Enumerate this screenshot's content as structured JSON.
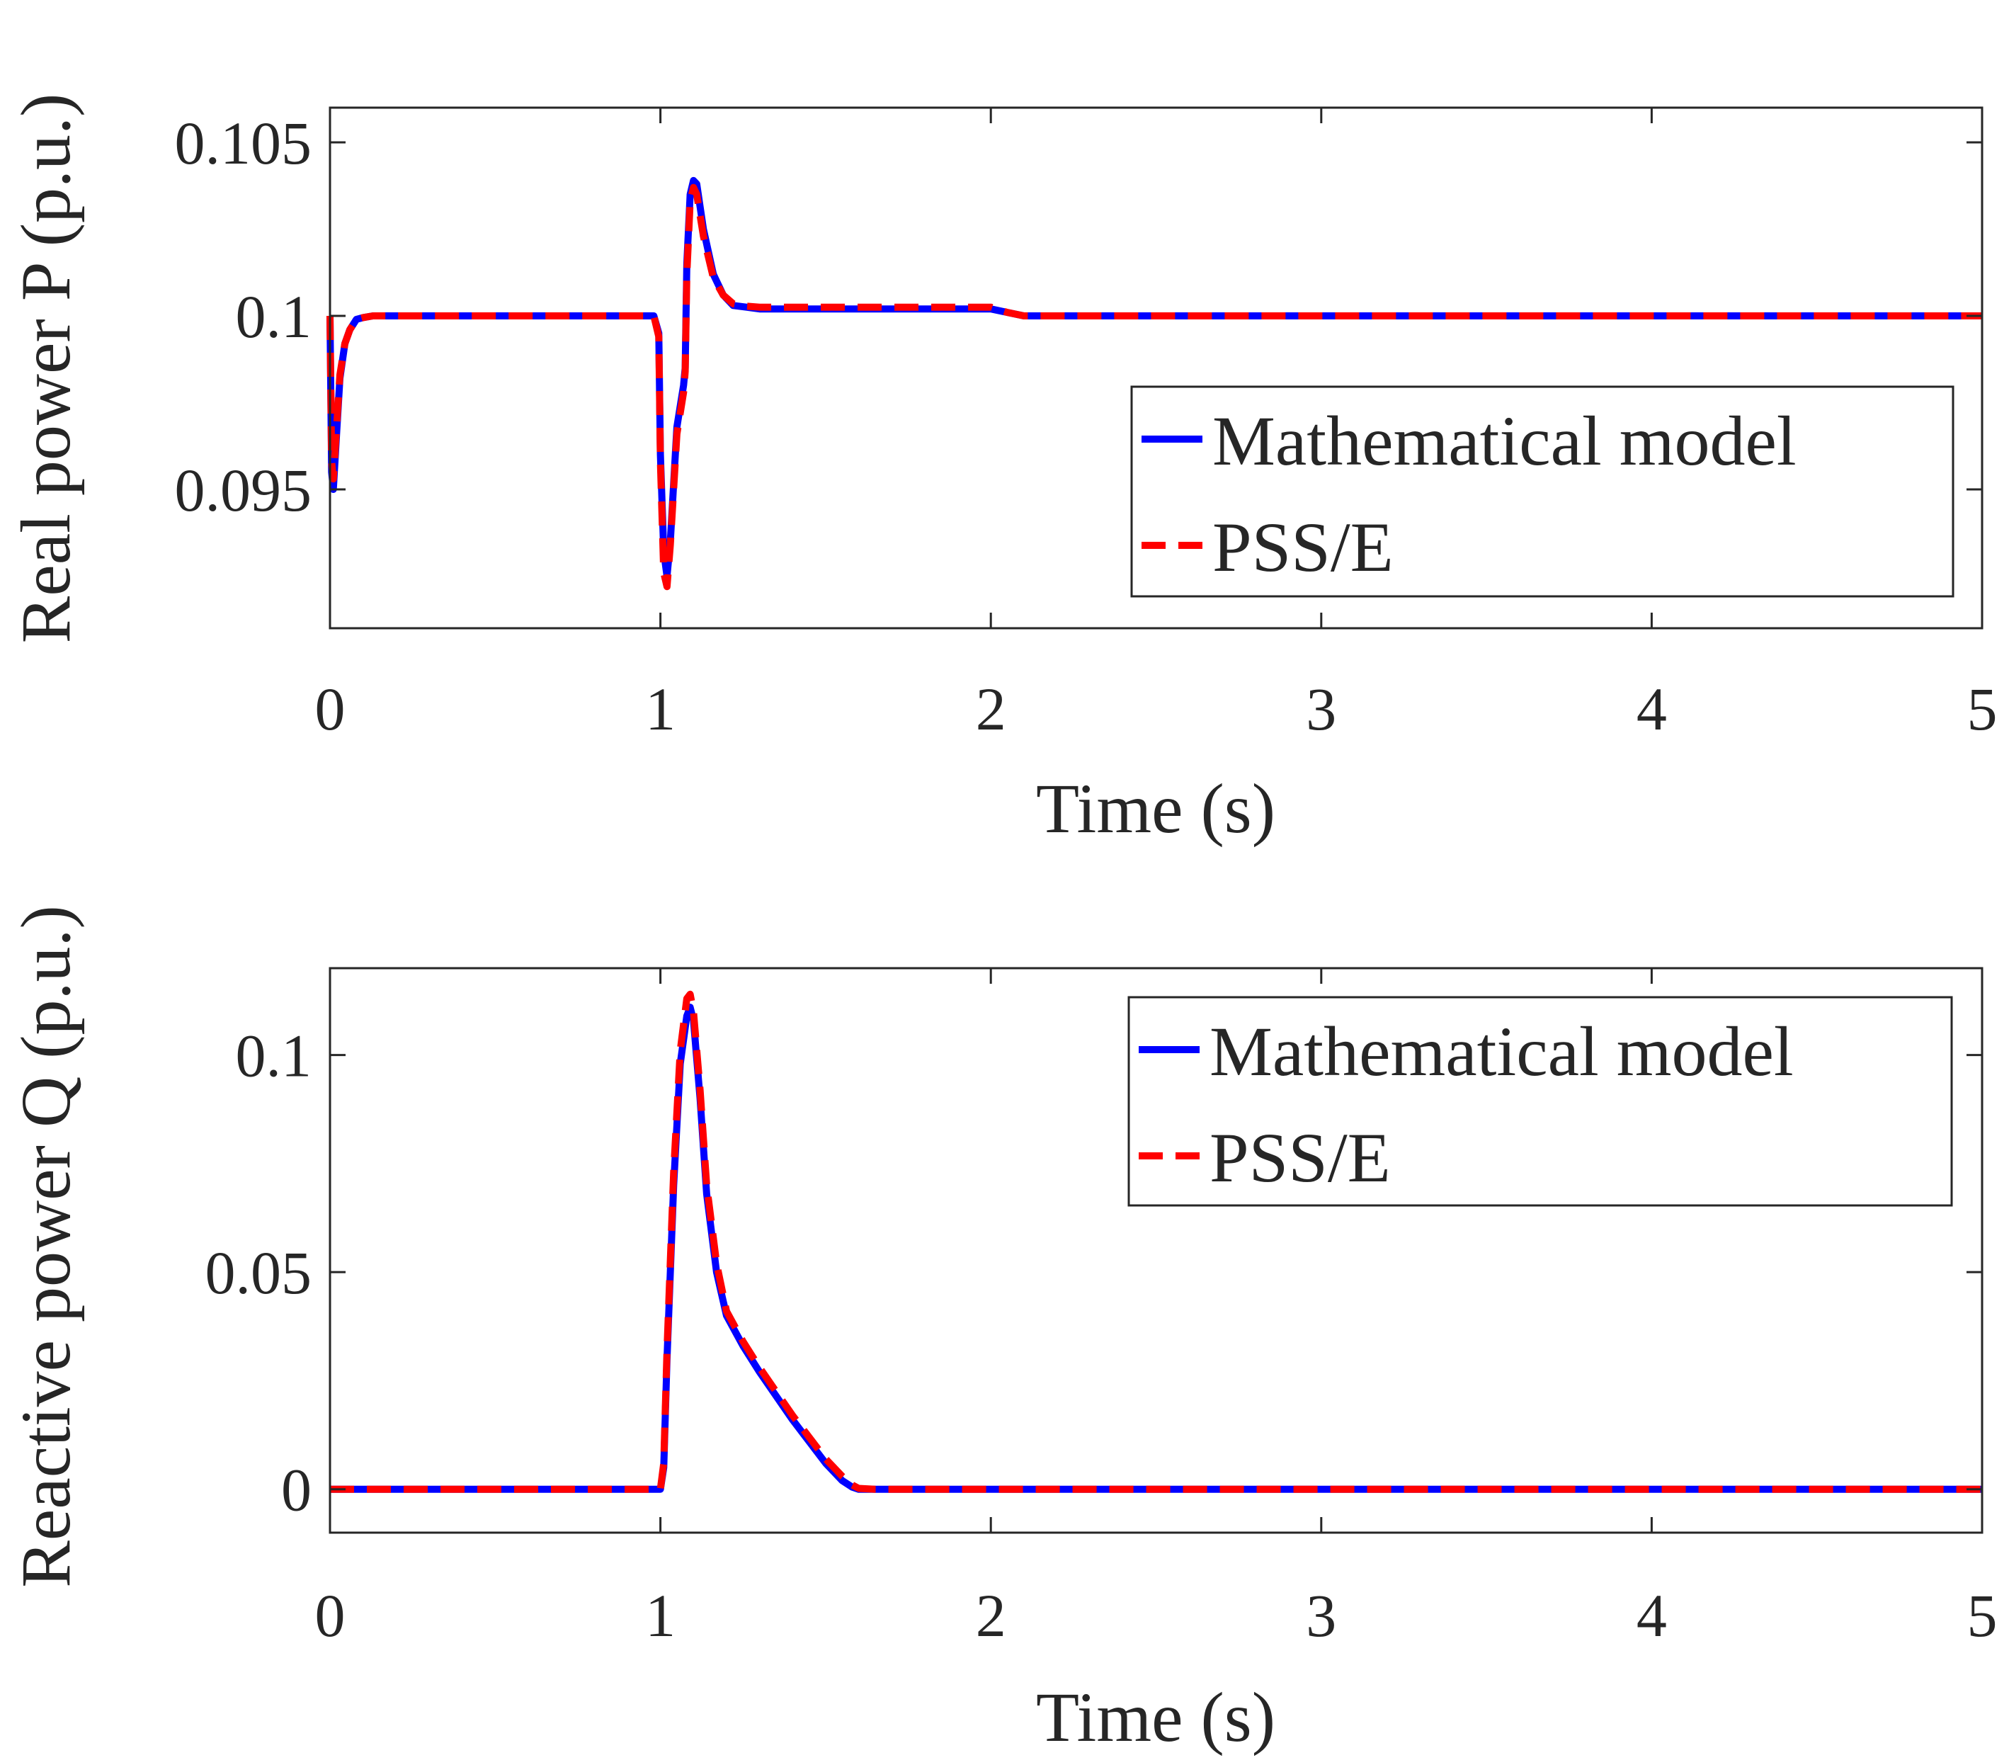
{
  "colors": {
    "model": "#0000ff",
    "psse": "#ff0000",
    "axis": "#262626",
    "background": "#ffffff"
  },
  "legend": {
    "model": "Mathematical model",
    "psse": "PSS/E"
  },
  "chart_data": [
    {
      "type": "line",
      "title": "",
      "xlabel": "Time (s)",
      "ylabel": "Real power P (p.u.)",
      "xlim": [
        0,
        5
      ],
      "ylim": [
        0.091,
        0.106
      ],
      "xticks": [
        0,
        1,
        2,
        3,
        4,
        5
      ],
      "xtick_labels": [
        "0",
        "1",
        "2",
        "3",
        "4",
        "5"
      ],
      "yticks": [
        0.095,
        0.1,
        0.105
      ],
      "ytick_labels": [
        "0.095",
        "0.1",
        "0.105"
      ],
      "legend_position": "middle-right",
      "series": [
        {
          "name": "Mathematical model",
          "style": "solid",
          "x": [
            0,
            0.005,
            0.01,
            0.02,
            0.03,
            0.045,
            0.06,
            0.08,
            0.1,
            0.13,
            0.2,
            0.5,
            0.98,
            0.995,
            1.0,
            1.01,
            1.02,
            1.03,
            1.05,
            1.07,
            1.075,
            1.08,
            1.09,
            1.1,
            1.11,
            1.13,
            1.16,
            1.19,
            1.22,
            1.26,
            1.3,
            1.5,
            1.8,
            2.0,
            2.05,
            2.1,
            2.2,
            3.0,
            4.0,
            5.0
          ],
          "y": [
            0.1,
            0.0955,
            0.095,
            0.0966,
            0.0982,
            0.0992,
            0.0996,
            0.0999,
            0.09995,
            0.1,
            0.1,
            0.1,
            0.1,
            0.0995,
            0.096,
            0.0932,
            0.0925,
            0.0935,
            0.0968,
            0.098,
            0.0985,
            0.1015,
            0.1035,
            0.1039,
            0.1038,
            0.1025,
            0.1012,
            0.1006,
            0.1003,
            0.10025,
            0.1002,
            0.1002,
            0.1002,
            0.1002,
            0.1001,
            0.1,
            0.1,
            0.1,
            0.1,
            0.1
          ]
        },
        {
          "name": "PSS/E",
          "style": "dashed",
          "x": [
            0,
            0.005,
            0.01,
            0.02,
            0.03,
            0.045,
            0.06,
            0.08,
            0.1,
            0.13,
            0.2,
            0.5,
            0.98,
            0.995,
            1.0,
            1.01,
            1.02,
            1.03,
            1.05,
            1.07,
            1.075,
            1.08,
            1.09,
            1.1,
            1.11,
            1.13,
            1.16,
            1.19,
            1.22,
            1.26,
            1.3,
            1.5,
            1.8,
            2.0,
            2.05,
            2.1,
            2.2,
            3.0,
            4.0,
            5.0
          ],
          "y": [
            0.1,
            0.0958,
            0.0953,
            0.0968,
            0.0983,
            0.0992,
            0.0996,
            0.0999,
            0.09995,
            0.1,
            0.1,
            0.1,
            0.1,
            0.0994,
            0.0958,
            0.0926,
            0.0922,
            0.0934,
            0.0966,
            0.0978,
            0.0984,
            0.1012,
            0.1033,
            0.1037,
            0.1035,
            0.1023,
            0.1011,
            0.1006,
            0.10035,
            0.10028,
            0.10025,
            0.10025,
            0.10025,
            0.10025,
            0.1001,
            0.1,
            0.1,
            0.1,
            0.1,
            0.1
          ]
        }
      ]
    },
    {
      "type": "line",
      "title": "",
      "xlabel": "Time (s)",
      "ylabel": "Reactive power Q (p.u.)",
      "xlim": [
        0,
        5
      ],
      "ylim": [
        -0.01,
        0.12
      ],
      "xticks": [
        0,
        1,
        2,
        3,
        4,
        5
      ],
      "xtick_labels": [
        "0",
        "1",
        "2",
        "3",
        "4",
        "5"
      ],
      "yticks": [
        0,
        0.05,
        0.1
      ],
      "ytick_labels": [
        "0",
        "0.05",
        "0.1"
      ],
      "legend_position": "top-right",
      "series": [
        {
          "name": "Mathematical model",
          "style": "solid",
          "x": [
            0,
            1.0,
            1.01,
            1.02,
            1.04,
            1.06,
            1.08,
            1.09,
            1.1,
            1.12,
            1.14,
            1.17,
            1.2,
            1.25,
            1.3,
            1.4,
            1.5,
            1.55,
            1.58,
            1.6,
            1.65,
            2.0,
            3.0,
            4.0,
            5.0
          ],
          "y": [
            0,
            0,
            0.005,
            0.03,
            0.07,
            0.098,
            0.109,
            0.111,
            0.108,
            0.09,
            0.068,
            0.05,
            0.04,
            0.033,
            0.027,
            0.016,
            0.006,
            0.002,
            0.0005,
            0,
            0,
            0,
            0,
            0,
            0
          ]
        },
        {
          "name": "PSS/E",
          "style": "dashed",
          "x": [
            0,
            1.0,
            1.01,
            1.02,
            1.04,
            1.06,
            1.08,
            1.09,
            1.1,
            1.12,
            1.14,
            1.17,
            1.2,
            1.25,
            1.3,
            1.4,
            1.5,
            1.55,
            1.58,
            1.6,
            1.65,
            2.0,
            3.0,
            4.0,
            5.0
          ],
          "y": [
            0,
            0,
            0.006,
            0.032,
            0.073,
            0.101,
            0.113,
            0.114,
            0.11,
            0.092,
            0.07,
            0.052,
            0.041,
            0.034,
            0.028,
            0.017,
            0.007,
            0.003,
            0.001,
            0.0002,
            0,
            0,
            0,
            0,
            0
          ]
        }
      ]
    }
  ]
}
